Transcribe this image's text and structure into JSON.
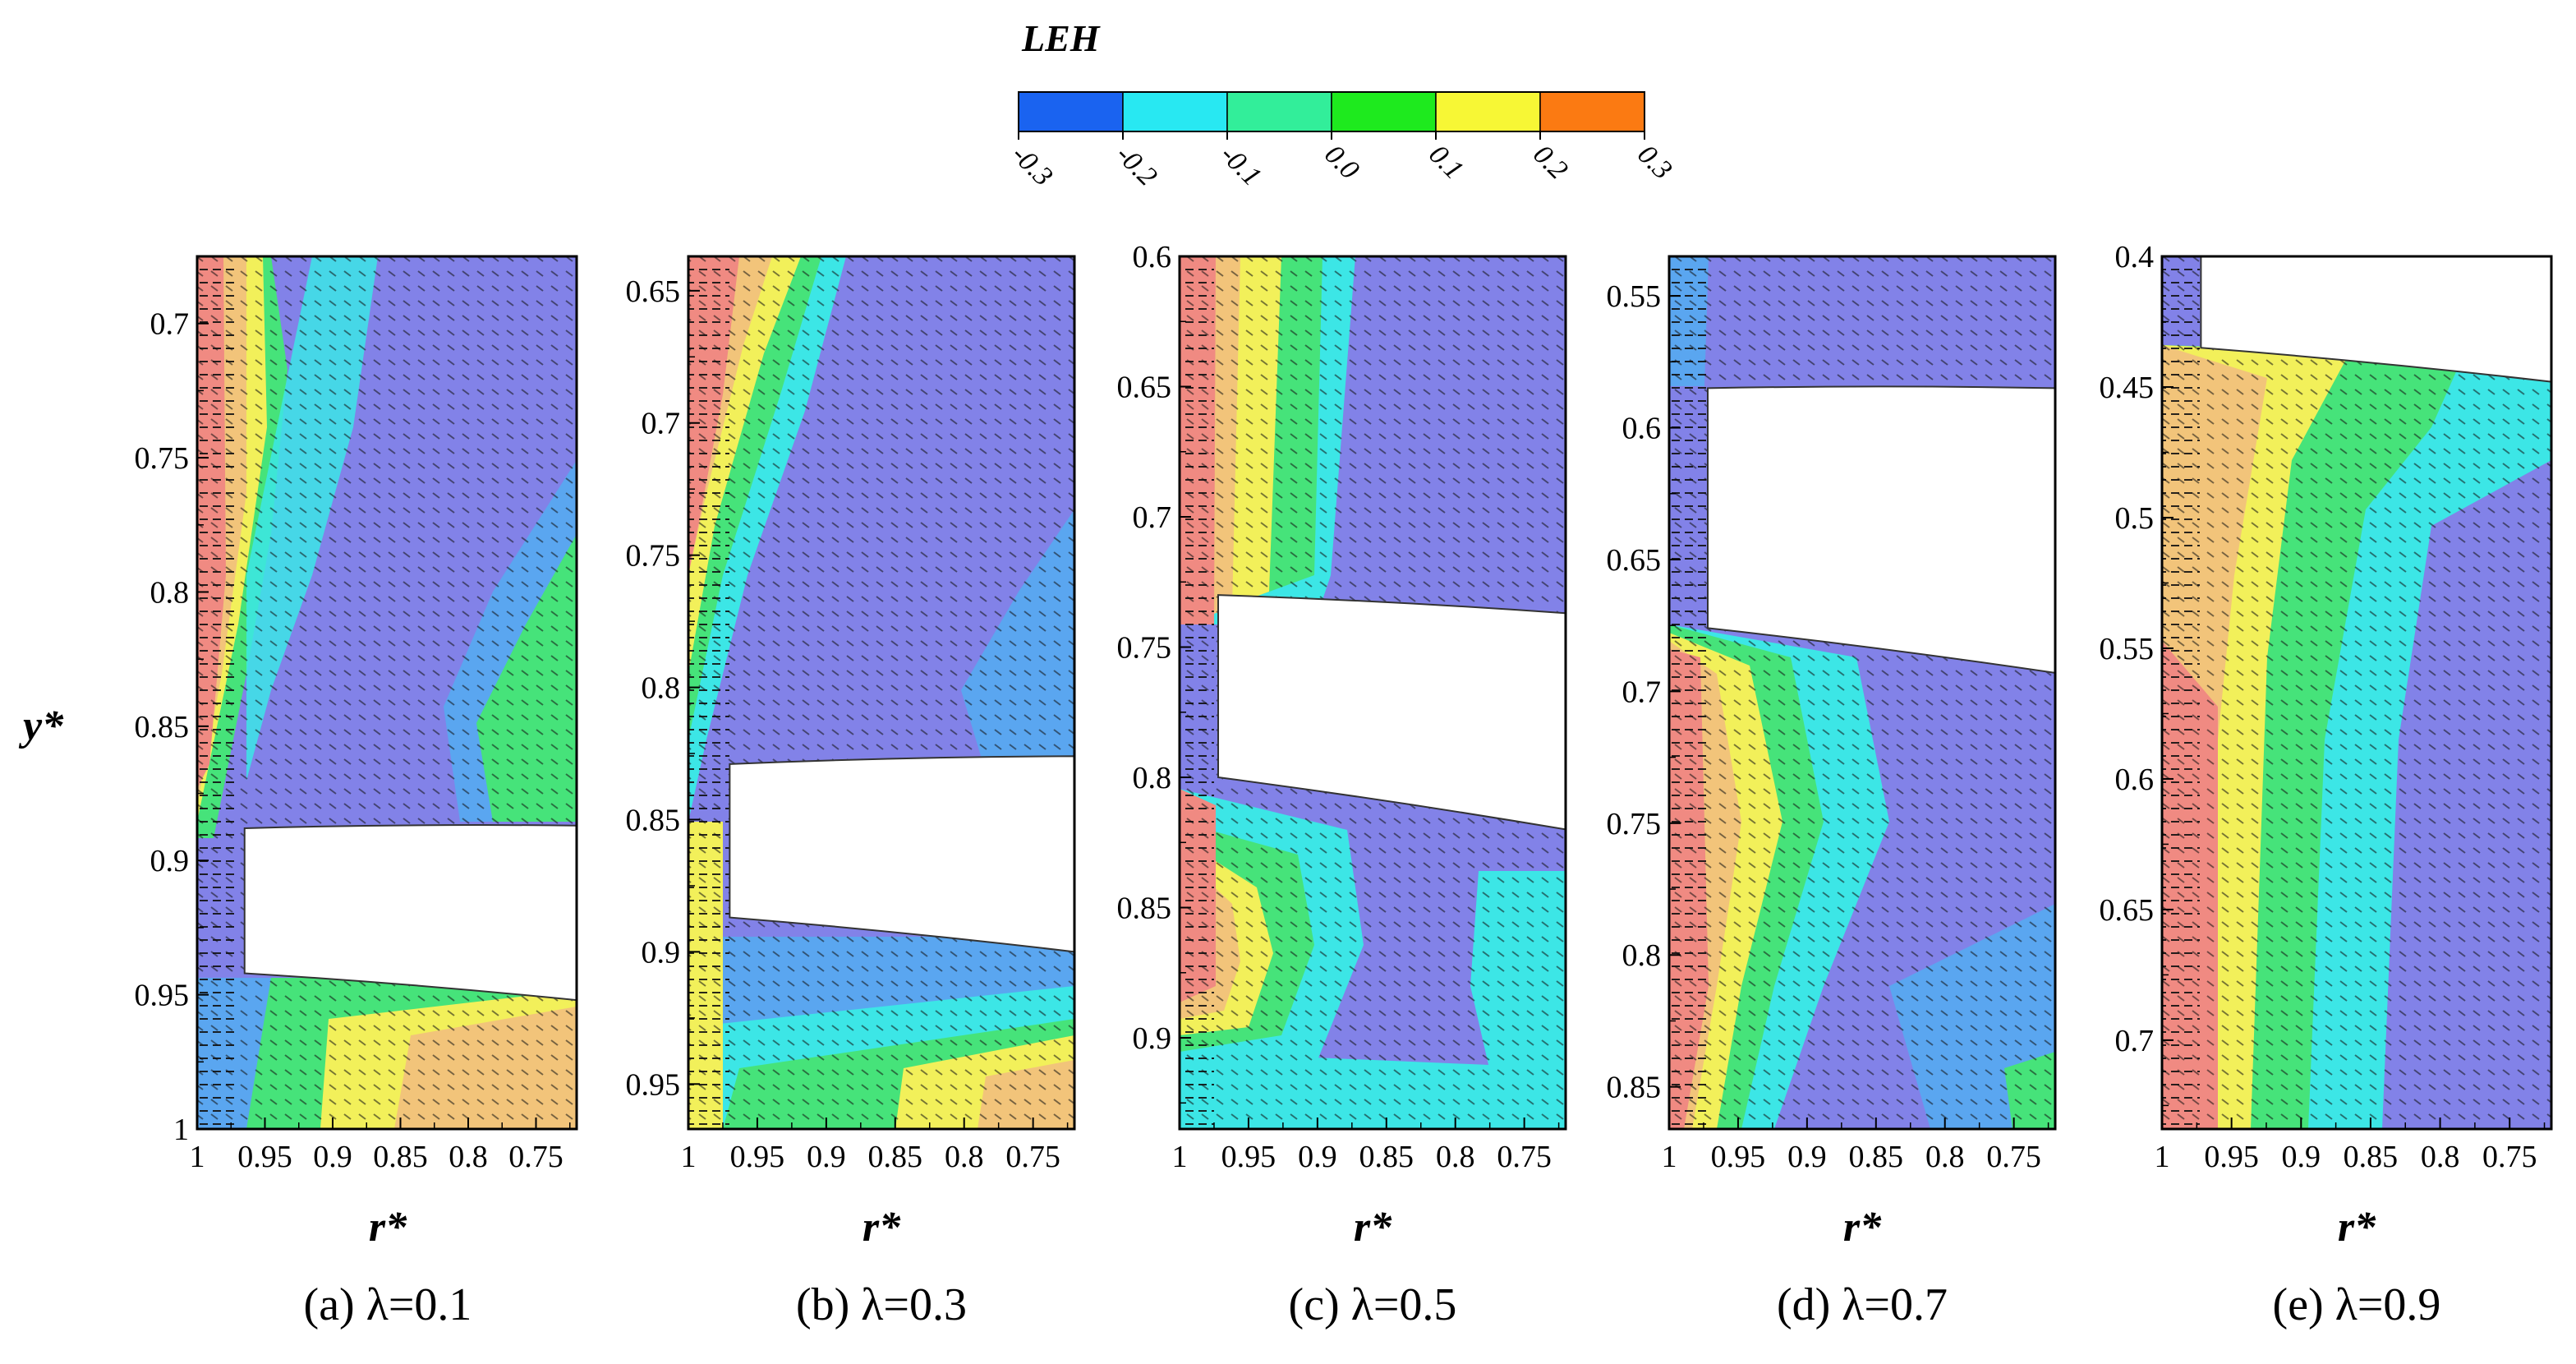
{
  "figure": {
    "colorbar": {
      "title": "LEH",
      "ticks": [
        "-0.3",
        "-0.2",
        "-0.1",
        "0.0",
        "0.1",
        "0.2",
        "0.3"
      ],
      "colors": [
        "#1a63f0",
        "#28e8f2",
        "#32ee9a",
        "#1eea1e",
        "#f7f735",
        "#fb7a12"
      ]
    },
    "shared_ylabel": "y*",
    "xlabel": "r*",
    "xticks": [
      "1",
      "0.95",
      "0.9",
      "0.85",
      "0.8",
      "0.75"
    ],
    "level_colors": {
      "neg_strong": "#8282e8",
      "neg_mid": "#5aa6f0",
      "neg_weak": "#3ce6e6",
      "zero": "#46e37a",
      "pos_weak": "#f2f05a",
      "pos_mid": "#f2c47a",
      "pos_strong": "#f08a82"
    }
  },
  "chart_data": [
    {
      "type": "heatmap",
      "id": "a",
      "caption": "(a) λ=0.1",
      "xlabel": "r*",
      "xlim": [
        1.0,
        0.72
      ],
      "ylim": [
        0.675,
        1.0
      ],
      "yticks": [
        "0.7",
        "0.75",
        "0.8",
        "0.85",
        "0.9",
        "0.95",
        "1"
      ],
      "ytick_values": [
        0.7,
        0.75,
        0.8,
        0.85,
        0.9,
        0.95,
        1.0
      ],
      "bubble": {
        "r_from": 0.965,
        "y_top_left": 0.888,
        "y_top_right": 0.887,
        "y_bot_left": 0.942,
        "y_bot_right": 0.952
      }
    },
    {
      "type": "heatmap",
      "id": "b",
      "caption": "(b) λ=0.3",
      "xlabel": "r*",
      "xlim": [
        1.0,
        0.72
      ],
      "ylim": [
        0.637,
        0.967
      ],
      "yticks": [
        "0.65",
        "0.7",
        "0.75",
        "0.8",
        "0.85",
        "0.9",
        "0.95"
      ],
      "ytick_values": [
        0.65,
        0.7,
        0.75,
        0.8,
        0.85,
        0.9,
        0.95
      ],
      "bubble": {
        "r_from": 0.97,
        "y_top_left": 0.829,
        "y_top_right": 0.826,
        "y_bot_left": 0.887,
        "y_bot_right": 0.9
      }
    },
    {
      "type": "heatmap",
      "id": "c",
      "caption": "(c) λ=0.5",
      "xlabel": "r*",
      "xlim": [
        1.0,
        0.72
      ],
      "ylim": [
        0.6,
        0.935
      ],
      "yticks": [
        "0.6",
        "0.65",
        "0.7",
        "0.75",
        "0.8",
        "0.85",
        "0.9"
      ],
      "ytick_values": [
        0.6,
        0.65,
        0.7,
        0.75,
        0.8,
        0.85,
        0.9
      ],
      "bubble": {
        "r_from": 0.972,
        "y_top_left": 0.73,
        "y_top_right": 0.737,
        "y_bot_left": 0.8,
        "y_bot_right": 0.82
      }
    },
    {
      "type": "heatmap",
      "id": "d",
      "caption": "(d) λ=0.7",
      "xlabel": "r*",
      "xlim": [
        1.0,
        0.72
      ],
      "ylim": [
        0.535,
        0.866
      ],
      "yticks": [
        "0.55",
        "0.6",
        "0.65",
        "0.7",
        "0.75",
        "0.8",
        "0.85"
      ],
      "ytick_values": [
        0.55,
        0.6,
        0.65,
        0.7,
        0.75,
        0.8,
        0.85
      ],
      "bubble": {
        "r_from": 0.972,
        "y_top_left": 0.585,
        "y_top_right": 0.585,
        "y_bot_left": 0.676,
        "y_bot_right": 0.693
      }
    },
    {
      "type": "heatmap",
      "id": "e",
      "caption": "(e) λ=0.9",
      "xlabel": "r*",
      "xlim": [
        1.0,
        0.72
      ],
      "ylim": [
        0.4,
        0.734
      ],
      "yticks": [
        "0.4",
        "0.45",
        "0.5",
        "0.55",
        "0.6",
        "0.65",
        "0.7"
      ],
      "ytick_values": [
        0.4,
        0.45,
        0.5,
        0.55,
        0.6,
        0.65,
        0.7
      ],
      "bubble": {
        "r_from": 0.972,
        "y_top_left": 0.4,
        "y_top_right": 0.4,
        "y_bot_left": 0.435,
        "y_bot_right": 0.448
      }
    }
  ]
}
